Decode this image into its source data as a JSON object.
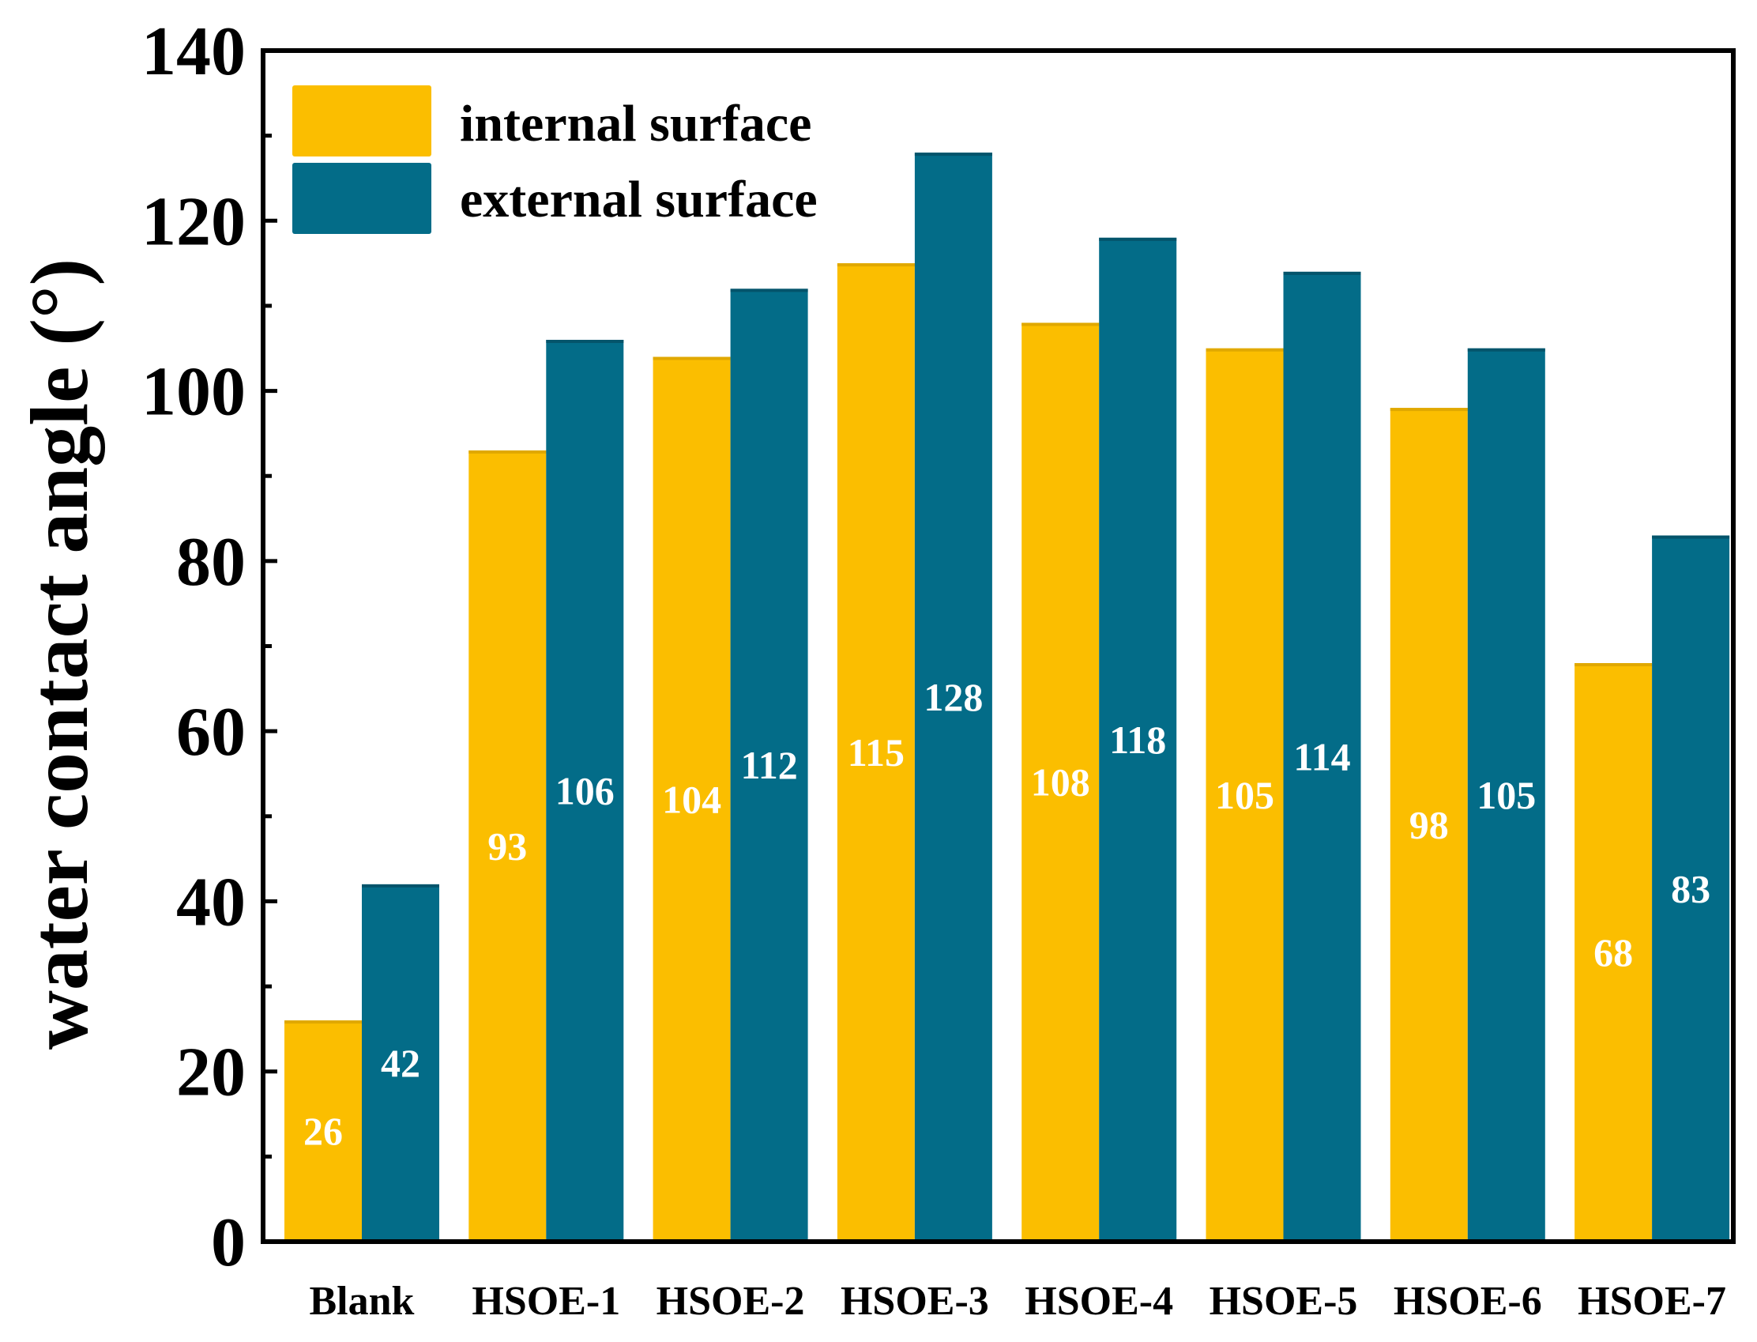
{
  "colors": {
    "internal": "#FBBE00",
    "external": "#036C88",
    "axis": "#000000",
    "bar_label": "#FFFFFF",
    "background": "#FFFFFF"
  },
  "chart_data": {
    "type": "bar",
    "title": "",
    "xlabel": "",
    "ylabel": "water contact angle (°)",
    "ylim": [
      0,
      140
    ],
    "yticks": [
      0,
      20,
      40,
      60,
      80,
      100,
      120,
      140
    ],
    "grid": false,
    "legend_position": "top-left",
    "categories": [
      "Blank",
      "HSOE-1",
      "HSOE-2",
      "HSOE-3",
      "HSOE-4",
      "HSOE-5",
      "HSOE-6",
      "HSOE-7"
    ],
    "series": [
      {
        "name": "internal surface",
        "color": "#FBBE00",
        "values": [
          26,
          93,
          104,
          115,
          108,
          105,
          98,
          68
        ],
        "labels": [
          "26",
          "93",
          "104",
          "115",
          "108",
          "105",
          "98",
          "68"
        ]
      },
      {
        "name": "external surface",
        "color": "#036C88",
        "values": [
          42,
          106,
          112,
          128,
          118,
          114,
          105,
          83
        ],
        "labels": [
          "42",
          "106",
          "112",
          "128",
          "118",
          "114",
          "105",
          "83"
        ]
      }
    ]
  }
}
